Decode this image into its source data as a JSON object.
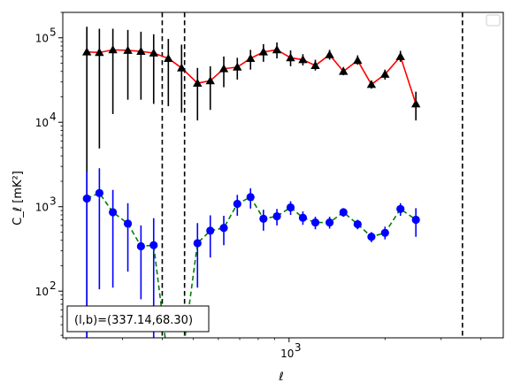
{
  "chart_data": {
    "type": "line",
    "xscale": "log",
    "yscale": "log",
    "xlabel": "ℓ",
    "ylabel": "C_ℓ  [mK²]",
    "xlim": [
      195,
      4700
    ],
    "ylim": [
      28,
      200000
    ],
    "grid": false,
    "legend": "upper right (empty)",
    "x_major_ticks": [
      {
        "value": 1000,
        "label": "10",
        "exp": "3"
      }
    ],
    "y_major_ticks": [
      {
        "value": 100,
        "label": "10",
        "exp": "2"
      },
      {
        "value": 1000,
        "label": "10",
        "exp": "3"
      },
      {
        "value": 10000,
        "label": "10",
        "exp": "4"
      },
      {
        "value": 100000,
        "label": "10",
        "exp": "5"
      }
    ],
    "vlines": [
      400,
      470,
      3500
    ],
    "annotation": "(l,b)=(337.14,68.30)",
    "series": [
      {
        "color": "#ff0000",
        "marker": "triangle",
        "marker_color": "#000000",
        "errbar_color": "#000000",
        "linestyle": "solid",
        "points": [
          {
            "x": 232,
            "y": 68000,
            "lo": 28,
            "hi": 135000
          },
          {
            "x": 254,
            "y": 67000,
            "lo": 4900,
            "hi": 128000
          },
          {
            "x": 280,
            "y": 72000,
            "lo": 12500,
            "hi": 128000
          },
          {
            "x": 312,
            "y": 71000,
            "lo": 18500,
            "hi": 124000
          },
          {
            "x": 343,
            "y": 69000,
            "lo": 18500,
            "hi": 118000
          },
          {
            "x": 376,
            "y": 66000,
            "lo": 16500,
            "hi": 110000
          },
          {
            "x": 418,
            "y": 57000,
            "lo": 15500,
            "hi": 97000
          },
          {
            "x": 460,
            "y": 44000,
            "lo": 13000,
            "hi": 83000
          },
          {
            "x": 516,
            "y": 29000,
            "lo": 10500,
            "hi": 44000
          },
          {
            "x": 566,
            "y": 31000,
            "lo": 14000,
            "hi": 46000
          },
          {
            "x": 624,
            "y": 43000,
            "lo": 26000,
            "hi": 60000
          },
          {
            "x": 688,
            "y": 45000,
            "lo": 32000,
            "hi": 58000
          },
          {
            "x": 757,
            "y": 57000,
            "lo": 42000,
            "hi": 72000
          },
          {
            "x": 831,
            "y": 68000,
            "lo": 52000,
            "hi": 84000
          },
          {
            "x": 916,
            "y": 72000,
            "lo": 57000,
            "hi": 88000
          },
          {
            "x": 1011,
            "y": 58000,
            "lo": 46000,
            "hi": 71000
          },
          {
            "x": 1105,
            "y": 55000,
            "lo": 47000,
            "hi": 64000
          },
          {
            "x": 1209,
            "y": 47000,
            "lo": 41000,
            "hi": 55000
          },
          {
            "x": 1340,
            "y": 63000,
            "lo": 55000,
            "hi": 72000
          },
          {
            "x": 1481,
            "y": 40000,
            "lo": 36000,
            "hi": 45000
          },
          {
            "x": 1641,
            "y": 54000,
            "lo": 48000,
            "hi": 62000
          },
          {
            "x": 1813,
            "y": 28000,
            "lo": 25000,
            "hi": 31000
          },
          {
            "x": 2000,
            "y": 37000,
            "lo": 32000,
            "hi": 42000
          },
          {
            "x": 2236,
            "y": 60000,
            "lo": 52000,
            "hi": 70000
          },
          {
            "x": 2500,
            "y": 16500,
            "lo": 10500,
            "hi": 23000
          }
        ]
      },
      {
        "color": "#008000",
        "marker": "circle",
        "marker_color": "#0000ff",
        "errbar_color": "#0000ff",
        "linestyle": "dashed",
        "points": [
          {
            "x": 232,
            "y": 1250,
            "lo": 28,
            "hi": 2600
          },
          {
            "x": 254,
            "y": 1450,
            "lo": 105,
            "hi": 2850
          },
          {
            "x": 280,
            "y": 860,
            "lo": 110,
            "hi": 1580
          },
          {
            "x": 312,
            "y": 630,
            "lo": 170,
            "hi": 1100
          },
          {
            "x": 343,
            "y": 340,
            "lo": 80,
            "hi": 600
          },
          {
            "x": 376,
            "y": 350,
            "lo": 28,
            "hi": 730
          },
          {
            "x": 418,
            "y": 14,
            "lo": 14,
            "hi": 14
          },
          {
            "x": 460,
            "y": 14,
            "lo": 14,
            "hi": 14
          },
          {
            "x": 516,
            "y": 370,
            "lo": 110,
            "hi": 640
          },
          {
            "x": 566,
            "y": 520,
            "lo": 250,
            "hi": 790
          },
          {
            "x": 624,
            "y": 560,
            "lo": 350,
            "hi": 780
          },
          {
            "x": 688,
            "y": 1080,
            "lo": 780,
            "hi": 1380
          },
          {
            "x": 757,
            "y": 1300,
            "lo": 950,
            "hi": 1650
          },
          {
            "x": 831,
            "y": 720,
            "lo": 520,
            "hi": 920
          },
          {
            "x": 916,
            "y": 770,
            "lo": 600,
            "hi": 940
          },
          {
            "x": 1011,
            "y": 980,
            "lo": 800,
            "hi": 1160
          },
          {
            "x": 1105,
            "y": 740,
            "lo": 610,
            "hi": 880
          },
          {
            "x": 1209,
            "y": 650,
            "lo": 540,
            "hi": 760
          },
          {
            "x": 1340,
            "y": 650,
            "lo": 550,
            "hi": 760
          },
          {
            "x": 1481,
            "y": 860,
            "lo": 760,
            "hi": 960
          },
          {
            "x": 1641,
            "y": 620,
            "lo": 540,
            "hi": 700
          },
          {
            "x": 1813,
            "y": 440,
            "lo": 380,
            "hi": 500
          },
          {
            "x": 2000,
            "y": 490,
            "lo": 410,
            "hi": 580
          },
          {
            "x": 2236,
            "y": 940,
            "lo": 780,
            "hi": 1100
          },
          {
            "x": 2500,
            "y": 700,
            "lo": 440,
            "hi": 960
          }
        ]
      }
    ]
  }
}
